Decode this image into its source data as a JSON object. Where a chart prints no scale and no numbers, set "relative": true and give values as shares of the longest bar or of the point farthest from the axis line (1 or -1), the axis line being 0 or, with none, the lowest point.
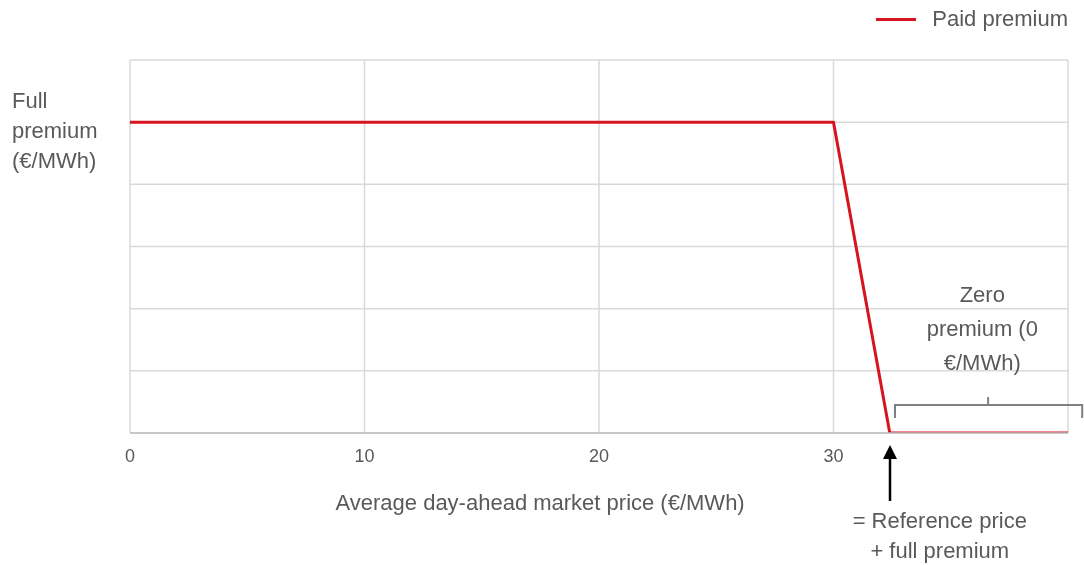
{
  "chart_data": {
    "type": "line",
    "relative": true,
    "xlabel": "Average day-ahead market price (€/MWh)",
    "ylabel": "Full premium (€/MWh)",
    "x": [
      0,
      30,
      32.4,
      40
    ],
    "series": [
      {
        "name": "Paid premium",
        "color": "#d7141e",
        "values": [
          1,
          1,
          0,
          0
        ]
      }
    ],
    "xlim": [
      0,
      40
    ],
    "xticks": [
      0,
      10,
      20,
      30
    ],
    "grid": true,
    "legend": "top right",
    "marker": "none",
    "line_style": "solid",
    "annotations": [
      "Zero premium (0 €/MWh)",
      "= Reference price + full premium"
    ]
  }
}
